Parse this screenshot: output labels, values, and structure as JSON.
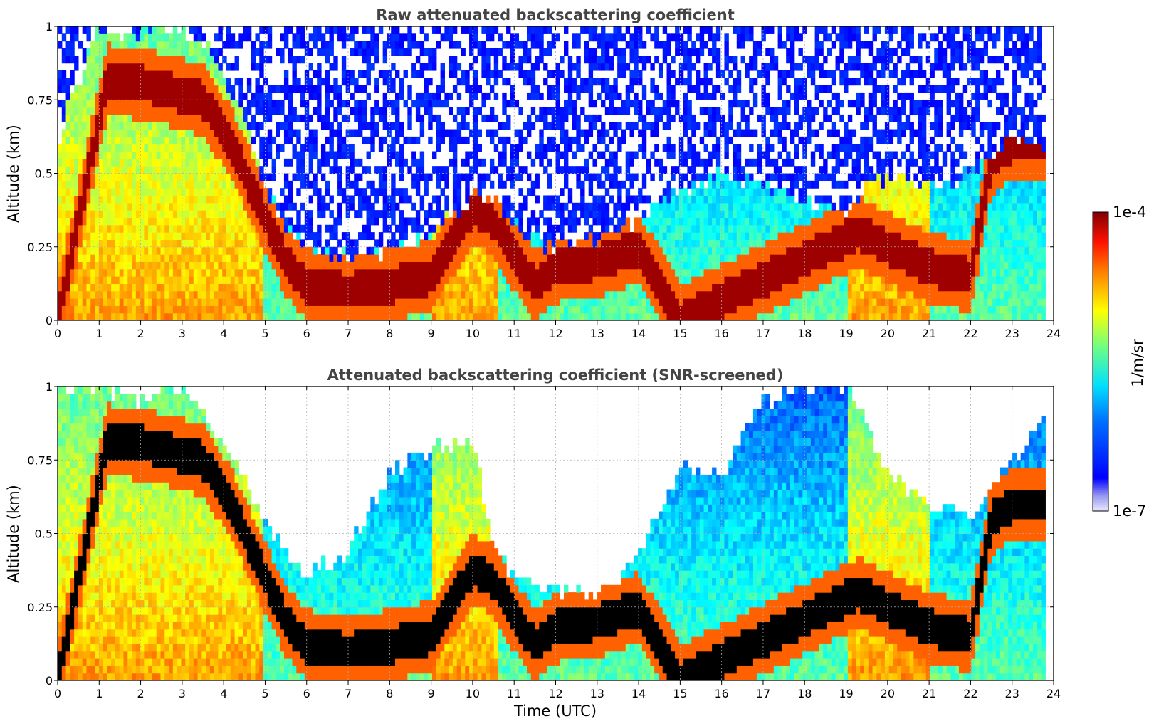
{
  "figure": {
    "colorbar": {
      "label": "1/m/sr",
      "min_label": "1e-7",
      "max_label": "1e-4",
      "colormap": "jet",
      "low_colors": [
        "#e8e8fb",
        "#b8b8f5",
        "#7a7aef",
        "#0000ff"
      ]
    },
    "shared_xlabel": "Time (UTC)"
  },
  "chart_data": [
    {
      "type": "heatmap",
      "title": "Raw attenuated backscattering coefficient",
      "xlabel": "",
      "ylabel": "Altitude (km)",
      "xlim": [
        0,
        24
      ],
      "ylim": [
        0,
        1
      ],
      "xticks": [
        "0",
        "1",
        "2",
        "3",
        "4",
        "5",
        "6",
        "7",
        "8",
        "9",
        "10",
        "11",
        "12",
        "13",
        "14",
        "15",
        "16",
        "17",
        "18",
        "19",
        "20",
        "21",
        "22",
        "23",
        "24"
      ],
      "yticks": [
        "0",
        "0.25",
        "0.5",
        "0.75",
        "1"
      ],
      "grid": true,
      "black_saturation": false,
      "layer_top_km": [
        [
          0,
          0.62
        ],
        [
          1,
          1.0
        ],
        [
          1.5,
          0.95
        ],
        [
          2.5,
          1.0
        ],
        [
          3.5,
          0.95
        ],
        [
          4.5,
          0.7
        ],
        [
          5,
          0.45
        ],
        [
          5.5,
          0.32
        ],
        [
          6,
          0.25
        ],
        [
          7,
          0.22
        ],
        [
          8,
          0.24
        ],
        [
          9,
          0.3
        ],
        [
          10,
          0.42
        ],
        [
          10.5,
          0.4
        ],
        [
          11,
          0.33
        ],
        [
          11.5,
          0.28
        ],
        [
          12,
          0.25
        ],
        [
          13,
          0.28
        ],
        [
          14,
          0.33
        ],
        [
          15,
          0.45
        ],
        [
          16,
          0.5
        ],
        [
          17,
          0.45
        ],
        [
          18,
          0.4
        ],
        [
          19,
          0.38
        ],
        [
          19.5,
          0.45
        ],
        [
          20,
          0.5
        ],
        [
          21,
          0.45
        ],
        [
          22,
          0.5
        ],
        [
          23,
          0.62
        ],
        [
          23.8,
          0.6
        ]
      ],
      "enhanced_layer_km": [
        [
          0,
          0.0
        ],
        [
          1.2,
          0.82
        ],
        [
          2.2,
          0.8
        ],
        [
          3.5,
          0.75
        ],
        [
          4.2,
          0.6
        ],
        [
          5,
          0.35
        ],
        [
          5.5,
          0.2
        ],
        [
          6,
          0.12
        ],
        [
          7,
          0.1
        ],
        [
          8,
          0.12
        ],
        [
          9,
          0.15
        ],
        [
          10,
          0.38
        ],
        [
          10.5,
          0.34
        ],
        [
          11,
          0.22
        ],
        [
          11.5,
          0.12
        ],
        [
          12,
          0.18
        ],
        [
          13,
          0.2
        ],
        [
          14,
          0.25
        ],
        [
          15,
          0.0
        ],
        [
          19.3,
          0.3
        ],
        [
          20,
          0.25
        ],
        [
          21,
          0.18
        ],
        [
          22,
          0.15
        ],
        [
          22.5,
          0.55
        ],
        [
          23,
          0.6
        ]
      ]
    },
    {
      "type": "heatmap",
      "title": "Attenuated backscattering coefficient (SNR-screened)",
      "xlabel": "Time (UTC)",
      "ylabel": "Altitude (km)",
      "xlim": [
        0,
        24
      ],
      "ylim": [
        0,
        1
      ],
      "xticks": [
        "0",
        "1",
        "2",
        "3",
        "4",
        "5",
        "6",
        "7",
        "8",
        "9",
        "10",
        "11",
        "12",
        "13",
        "14",
        "15",
        "16",
        "17",
        "18",
        "19",
        "20",
        "21",
        "22",
        "23",
        "24"
      ],
      "yticks": [
        "0",
        "0.25",
        "0.5",
        "0.75",
        "1"
      ],
      "grid": true,
      "black_saturation": true,
      "layer_top_km": [
        [
          0,
          1.0
        ],
        [
          1,
          1.0
        ],
        [
          2,
          0.95
        ],
        [
          3,
          1.0
        ],
        [
          4,
          0.8
        ],
        [
          5,
          0.55
        ],
        [
          5.5,
          0.42
        ],
        [
          6,
          0.35
        ],
        [
          7,
          0.45
        ],
        [
          8,
          0.7
        ],
        [
          9,
          0.8
        ],
        [
          10,
          0.82
        ],
        [
          10.5,
          0.45
        ],
        [
          11,
          0.35
        ],
        [
          11.5,
          0.32
        ],
        [
          12,
          0.3
        ],
        [
          13,
          0.28
        ],
        [
          14,
          0.42
        ],
        [
          15,
          0.72
        ],
        [
          16,
          0.7
        ],
        [
          17,
          0.95
        ],
        [
          18,
          1.0
        ],
        [
          19,
          1.0
        ],
        [
          20,
          0.7
        ],
        [
          21,
          0.6
        ],
        [
          22,
          0.55
        ],
        [
          23,
          0.75
        ],
        [
          23.8,
          0.9
        ]
      ],
      "enhanced_layer_km": [
        [
          0,
          0.0
        ],
        [
          1.2,
          0.82
        ],
        [
          2.2,
          0.8
        ],
        [
          3.5,
          0.75
        ],
        [
          4.2,
          0.6
        ],
        [
          5,
          0.35
        ],
        [
          5.5,
          0.2
        ],
        [
          6,
          0.12
        ],
        [
          7,
          0.1
        ],
        [
          8,
          0.12
        ],
        [
          9,
          0.15
        ],
        [
          10,
          0.38
        ],
        [
          10.5,
          0.34
        ],
        [
          11,
          0.22
        ],
        [
          11.5,
          0.12
        ],
        [
          12,
          0.18
        ],
        [
          13,
          0.2
        ],
        [
          14,
          0.25
        ],
        [
          15,
          0.0
        ],
        [
          19.3,
          0.3
        ],
        [
          20,
          0.25
        ],
        [
          21,
          0.18
        ],
        [
          22,
          0.15
        ],
        [
          22.5,
          0.55
        ],
        [
          23,
          0.6
        ]
      ]
    }
  ]
}
